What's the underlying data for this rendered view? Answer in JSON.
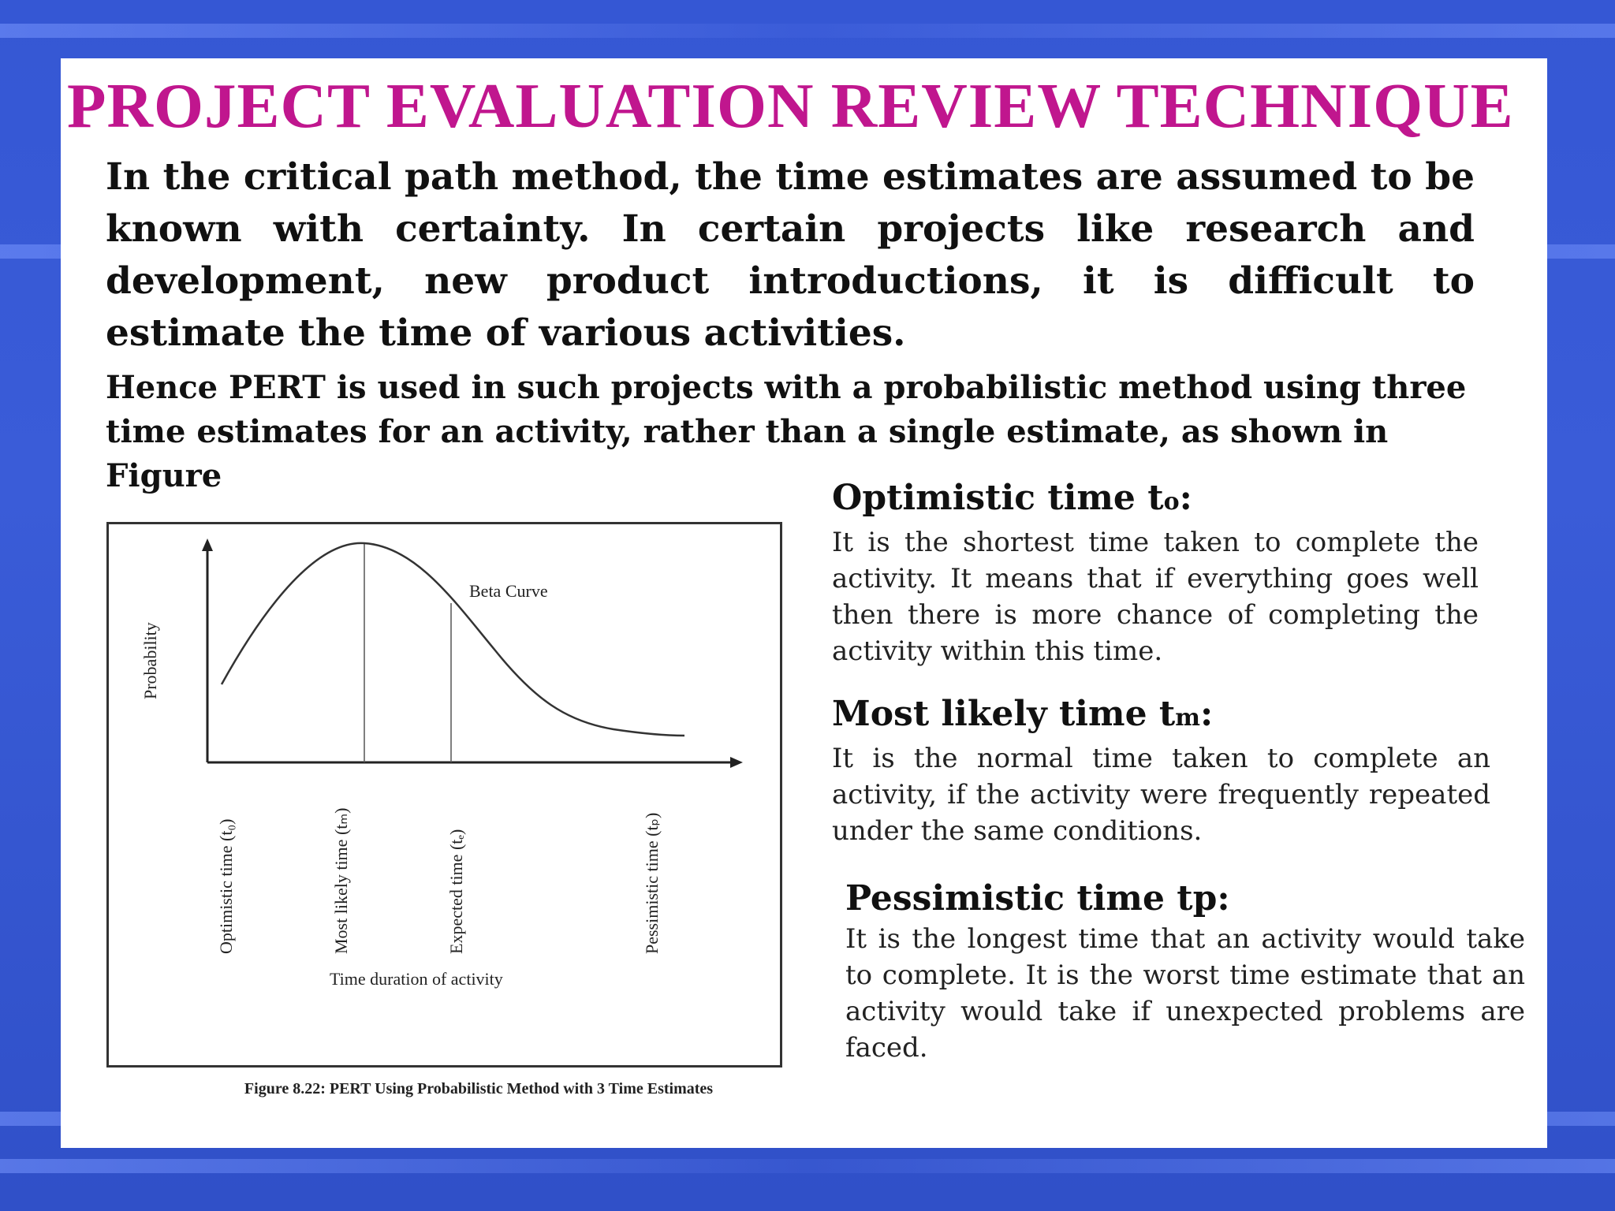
{
  "title": "PROJECT EVALUATION REVIEW TECHNIQUE",
  "paragraph1": "In the critical path method, the time estimates are assumed to be known with certainty. In certain projects like research and development, new product introductions, it is difficult to estimate the time of various activities.",
  "paragraph2": "Hence PERT is used in such projects with a  probabilistic method using three time estimates for an activity, rather than a single estimate, as shown in Figure",
  "figure": {
    "y_axis_label": "Probability",
    "curve_label": "Beta Curve",
    "x_axis_label": "Time duration of activity",
    "tick_labels": [
      "Optimistic time (t₀)",
      "Most likely time (tₘ)",
      "Expected time (tₑ)",
      "Pessimistic time (tₚ)"
    ],
    "caption": "Figure 8.22: PERT Using Probabilistic Method with 3 Time Estimates"
  },
  "definitions": {
    "optimistic": {
      "heading_main": "Optimistic time t",
      "heading_sub": "o",
      "heading_end": ":",
      "text": "It is the shortest time taken to complete the activity. It means that if everything goes well then there is more chance of completing the activity within this time."
    },
    "most_likely": {
      "heading_main": "Most likely time t",
      "heading_sub": "m",
      "heading_end": ":",
      "text": "It is the normal time taken to complete an activity, if the activity were frequently repeated under the same conditions."
    },
    "pessimistic": {
      "heading": "Pessimistic time tp:",
      "text": "It is the longest time that an activity would take to complete. It is the worst time estimate that an activity would take if unexpected problems are faced."
    }
  }
}
